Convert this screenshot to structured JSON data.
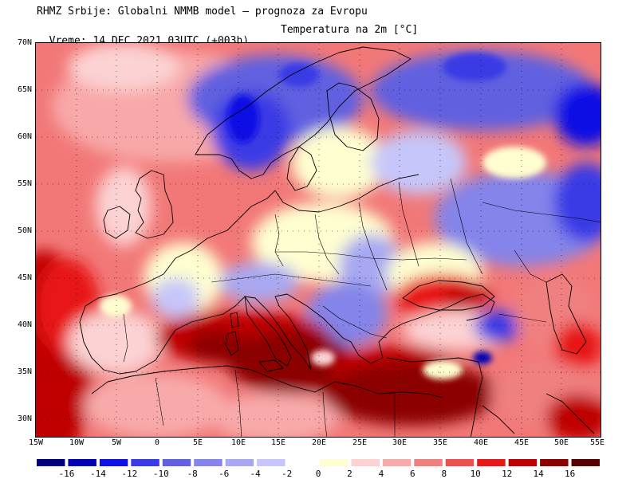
{
  "header": {
    "line1": "RHMZ Srbije: Globalni NMMB model — prognoza za Evropu",
    "line2": "Vreme: 14 DEC 2021 03UTC (+003h)",
    "variable": "Temperatura na 2m [°C]"
  },
  "map": {
    "lon_range": [
      -15,
      55
    ],
    "lat_range": [
      28,
      70
    ],
    "lat_ticks": [
      "70N",
      "65N",
      "60N",
      "55N",
      "50N",
      "45N",
      "40N",
      "35N",
      "30N"
    ],
    "lon_ticks": [
      "15W",
      "10W",
      "5W",
      "0",
      "5E",
      "10E",
      "15E",
      "20E",
      "25E",
      "30E",
      "35E",
      "40E",
      "45E",
      "50E",
      "55E"
    ]
  },
  "colorbar": {
    "labels": [
      "-16",
      "-14",
      "-12",
      "-10",
      "-8",
      "-6",
      "-4",
      "-2",
      "0",
      "2",
      "4",
      "6",
      "8",
      "10",
      "12",
      "14",
      "16"
    ],
    "colors": [
      "#00007e",
      "#0000b4",
      "#1010e6",
      "#3a3ae6",
      "#6060e0",
      "#8484ea",
      "#a8a8f2",
      "#c6c6fa",
      "#ffffff",
      "#fefed0",
      "#fcd2d2",
      "#f8aaaa",
      "#f08080",
      "#ec5050",
      "#e81818",
      "#c00000",
      "#8c0000",
      "#5a0000"
    ]
  }
}
